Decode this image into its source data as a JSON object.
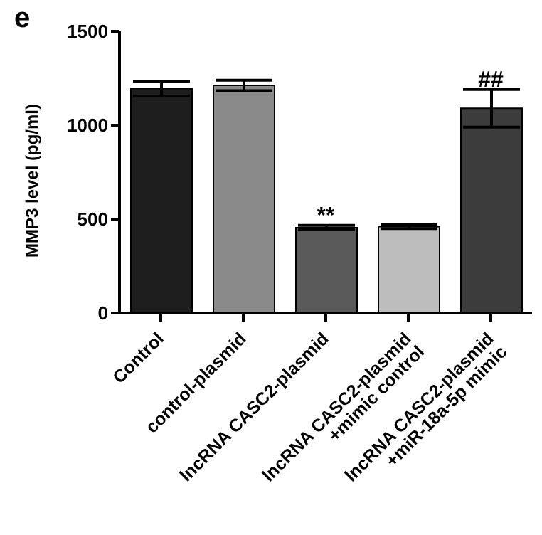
{
  "chart_data": {
    "type": "bar",
    "ylabel": "MMP3 level (pg/ml)",
    "categories": [
      "Control",
      "control-plasmid",
      "lncRNA CASC2-plasmid",
      "lncRNA CASC2-plasmid\n+mimic control",
      "lncRNA CASC2-plasmid\n+miR-18a-5p mimic"
    ],
    "values": [
      1195,
      1212,
      455,
      460,
      1090
    ],
    "errors": [
      40,
      28,
      12,
      10,
      100
    ],
    "colors": [
      "#1e1e1e",
      "#8a8a8a",
      "#5a5a5a",
      "#bdbdbd",
      "#3c3c3c"
    ],
    "ylim": [
      0,
      1500
    ],
    "yticks": [
      0,
      500,
      1000,
      1500
    ],
    "annotations": [
      "e",
      {
        "text": "**",
        "x": "lncRNA CASC2-plasmid",
        "y": 467
      },
      {
        "text": "##",
        "x": "lncRNA CASC2-plasmid\n+miR-18a-5p mimic",
        "y": 1190
      }
    ]
  }
}
